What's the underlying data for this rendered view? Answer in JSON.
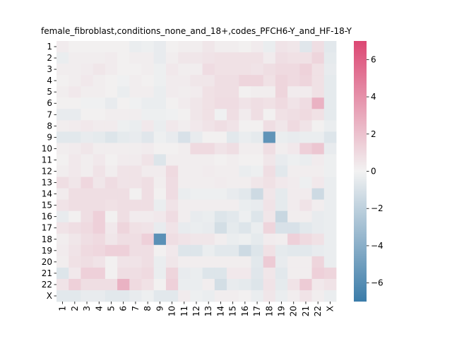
{
  "chart_data": {
    "type": "heatmap",
    "title": "female_fibroblast,conditions_none_and_18+,codes_PFCH6-Y_and_HF-18-Y",
    "xlabel": "",
    "ylabel": "",
    "x_labels": [
      "1",
      "2",
      "3",
      "4",
      "5",
      "6",
      "7",
      "8",
      "9",
      "10",
      "11",
      "12",
      "13",
      "14",
      "15",
      "16",
      "17",
      "18",
      "19",
      "20",
      "21",
      "22",
      "X"
    ],
    "y_labels": [
      "1",
      "2",
      "3",
      "4",
      "5",
      "6",
      "7",
      "8",
      "9",
      "10",
      "11",
      "12",
      "13",
      "14",
      "15",
      "16",
      "17",
      "18",
      "19",
      "20",
      "21",
      "22",
      "X"
    ],
    "colorbar": {
      "min": -7,
      "max": 7,
      "ticks": [
        -6,
        -4,
        -2,
        0,
        2,
        4,
        6
      ],
      "low_color": "#3b7ca9",
      "mid_color": "#f2f2f2",
      "high_color": "#dc4773"
    },
    "values": [
      [
        0.3,
        0.1,
        0.1,
        0.1,
        0.1,
        0.1,
        -0.3,
        -0.2,
        -0.4,
        0.1,
        0.2,
        0.2,
        0.5,
        0.2,
        0.2,
        0.1,
        0.3,
        -0.3,
        0.6,
        0.5,
        -0.7,
        0.8,
        -0.6
      ],
      [
        -0.3,
        0.2,
        0.2,
        0.2,
        0.3,
        0.1,
        0.2,
        0.2,
        -0.4,
        0.2,
        0.5,
        0.5,
        0.6,
        0.7,
        0.7,
        0.7,
        0.7,
        0.3,
        0.8,
        0.7,
        0.7,
        1.2,
        -0.5
      ],
      [
        0.2,
        0.2,
        0.3,
        0.5,
        0.3,
        0.1,
        0.1,
        0.2,
        -0.2,
        0.4,
        0.2,
        0.2,
        0.9,
        0.7,
        0.7,
        0.7,
        0.6,
        0.8,
        1.0,
        1.0,
        1.3,
        0.7,
        -0.4
      ],
      [
        0.1,
        0.2,
        0.4,
        0.2,
        0.1,
        -0.1,
        0.2,
        0.1,
        -0.2,
        0.3,
        0.3,
        0.5,
        0.5,
        0.8,
        0.8,
        1.2,
        1.2,
        0.7,
        1.2,
        1.0,
        1.2,
        0.7,
        -0.5
      ],
      [
        0.2,
        0.4,
        0.2,
        0.2,
        0.1,
        -0.3,
        0.2,
        0.2,
        -0.3,
        0.3,
        0.2,
        0.3,
        0.7,
        0.8,
        0.8,
        0.1,
        0.2,
        0.2,
        1.2,
        0.3,
        0.3,
        0.7,
        -0.5
      ],
      [
        0.1,
        0.1,
        -0.1,
        -0.1,
        -0.4,
        0.1,
        -0.1,
        -0.3,
        -0.3,
        0.1,
        0.3,
        0.5,
        0.7,
        0.9,
        0.9,
        0.6,
        0.8,
        0.7,
        1.0,
        0.6,
        0.9,
        2.6,
        -0.5
      ],
      [
        -0.4,
        -0.4,
        0.1,
        0.1,
        0.2,
        0.2,
        0.2,
        -0.2,
        -0.2,
        -0.1,
        0.1,
        0.5,
        0.7,
        -0.1,
        0.8,
        0.3,
        0.8,
        0.1,
        0.7,
        0.8,
        1.0,
        0.7,
        -0.5
      ],
      [
        0.2,
        0.3,
        0.4,
        0.3,
        0.3,
        -0.2,
        -0.3,
        0.4,
        -0.3,
        0.4,
        0.2,
        0.4,
        0.6,
        0.8,
        0.6,
        0.1,
        0.1,
        0.8,
        0.5,
        1.0,
        0.6,
        0.1,
        -0.3
      ],
      [
        -0.6,
        -0.6,
        -0.4,
        -0.5,
        -0.8,
        -0.5,
        -0.4,
        -0.7,
        -0.2,
        -0.4,
        -1.0,
        -0.4,
        0.1,
        0.1,
        -0.6,
        -0.3,
        -0.5,
        -5.6,
        -0.3,
        -0.4,
        -0.3,
        -0.3,
        -0.8
      ],
      [
        0.2,
        0.3,
        0.5,
        0.2,
        0.2,
        0.2,
        0.2,
        0.3,
        0.1,
        0.1,
        0.2,
        1.0,
        1.0,
        0.6,
        0.8,
        0.2,
        0.2,
        0.8,
        0.2,
        0.4,
        1.4,
        1.8,
        -0.4
      ],
      [
        0.1,
        0.4,
        0.2,
        0.4,
        0.1,
        0.3,
        0.3,
        0.6,
        -0.8,
        0.2,
        0.2,
        0.2,
        0.2,
        0.1,
        0.2,
        0.1,
        0.1,
        0.5,
        -0.4,
        -0.2,
        -0.3,
        0.3,
        -0.2
      ],
      [
        0.2,
        0.4,
        0.2,
        0.6,
        0.2,
        0.6,
        0.6,
        0.3,
        0.3,
        1.0,
        0.2,
        0.2,
        0.3,
        0.2,
        0.2,
        -0.3,
        -0.2,
        0.8,
        -0.6,
        0.2,
        0.2,
        0.2,
        -0.2
      ],
      [
        0.8,
        0.5,
        1.1,
        0.5,
        0.9,
        0.6,
        0.6,
        0.8,
        0.2,
        0.9,
        0.2,
        0.2,
        0.2,
        0.3,
        0.2,
        0.2,
        0.5,
        0.7,
        0.4,
        0.3,
        -0.2,
        0.4,
        -0.3
      ],
      [
        0.3,
        0.8,
        0.8,
        0.8,
        0.8,
        0.8,
        0.1,
        0.8,
        0.1,
        0.9,
        -0.3,
        -0.2,
        -0.2,
        -0.2,
        -0.4,
        -0.6,
        -1.4,
        0.5,
        -0.5,
        0.3,
        0.3,
        -1.4,
        -0.3
      ],
      [
        0.6,
        0.8,
        0.8,
        0.8,
        0.7,
        0.8,
        0.8,
        0.8,
        -0.3,
        0.6,
        0.2,
        0.2,
        0.2,
        0.2,
        0.2,
        -0.3,
        -0.4,
        0.6,
        -0.5,
        0.3,
        0.6,
        0.2,
        -0.3
      ],
      [
        -0.4,
        0.1,
        0.8,
        1.4,
        0.1,
        0.8,
        0.3,
        0.3,
        0.4,
        0.9,
        0.2,
        -0.4,
        -0.3,
        -0.8,
        -0.6,
        -0.2,
        -0.8,
        0.5,
        -1.6,
        0.2,
        0.2,
        -0.4,
        -0.3
      ],
      [
        0.6,
        0.8,
        1.0,
        1.4,
        0.4,
        1.2,
        0.7,
        0.6,
        -0.4,
        0.6,
        -0.4,
        -0.3,
        -0.4,
        -1.2,
        -0.5,
        -0.8,
        -0.3,
        1.2,
        -1.0,
        -1.0,
        -0.6,
        -0.4,
        -0.3
      ],
      [
        0.2,
        0.5,
        0.8,
        1.0,
        0.5,
        0.8,
        0.8,
        1.4,
        -5.8,
        0.8,
        0.6,
        0.5,
        0.5,
        0.2,
        -0.3,
        -0.2,
        -0.5,
        0.3,
        0.2,
        1.4,
        1.0,
        0.7,
        -0.3
      ],
      [
        0.3,
        0.6,
        1.0,
        1.1,
        1.4,
        1.4,
        0.8,
        0.8,
        0.1,
        0.4,
        -0.8,
        -0.8,
        -0.3,
        -0.6,
        -0.6,
        -1.4,
        -0.8,
        0.7,
        -0.5,
        -0.6,
        -0.6,
        -0.4,
        -0.3
      ],
      [
        0.2,
        0.7,
        0.8,
        0.6,
        0.1,
        0.6,
        0.6,
        0.8,
        -0.3,
        0.5,
        0.2,
        0.2,
        0.2,
        0.2,
        0.2,
        0.2,
        -0.6,
        1.6,
        -0.4,
        0.2,
        0.2,
        1.2,
        -0.3
      ],
      [
        -0.8,
        0.4,
        1.4,
        1.4,
        0.1,
        0.8,
        0.8,
        1.0,
        -0.3,
        1.2,
        -0.4,
        -0.3,
        -0.8,
        -0.8,
        0.4,
        0.4,
        -0.7,
        0.5,
        -0.6,
        0.2,
        0.2,
        1.4,
        1.2
      ],
      [
        0.6,
        1.4,
        0.8,
        0.8,
        0.8,
        2.6,
        1.0,
        0.7,
        0.1,
        1.4,
        -0.3,
        -0.3,
        0.2,
        -1.2,
        -0.4,
        -0.5,
        -0.8,
        0.6,
        -0.5,
        0.6,
        1.6,
        0.4,
        0.6
      ],
      [
        -0.6,
        -0.6,
        -0.4,
        -0.4,
        -0.6,
        -0.6,
        -0.4,
        -0.2,
        -0.6,
        -0.6,
        0.3,
        -0.2,
        -0.3,
        0.2,
        0.2,
        0.1,
        -0.3,
        0.5,
        -0.3,
        0.2,
        0.6,
        0.2,
        -0.3
      ]
    ]
  }
}
